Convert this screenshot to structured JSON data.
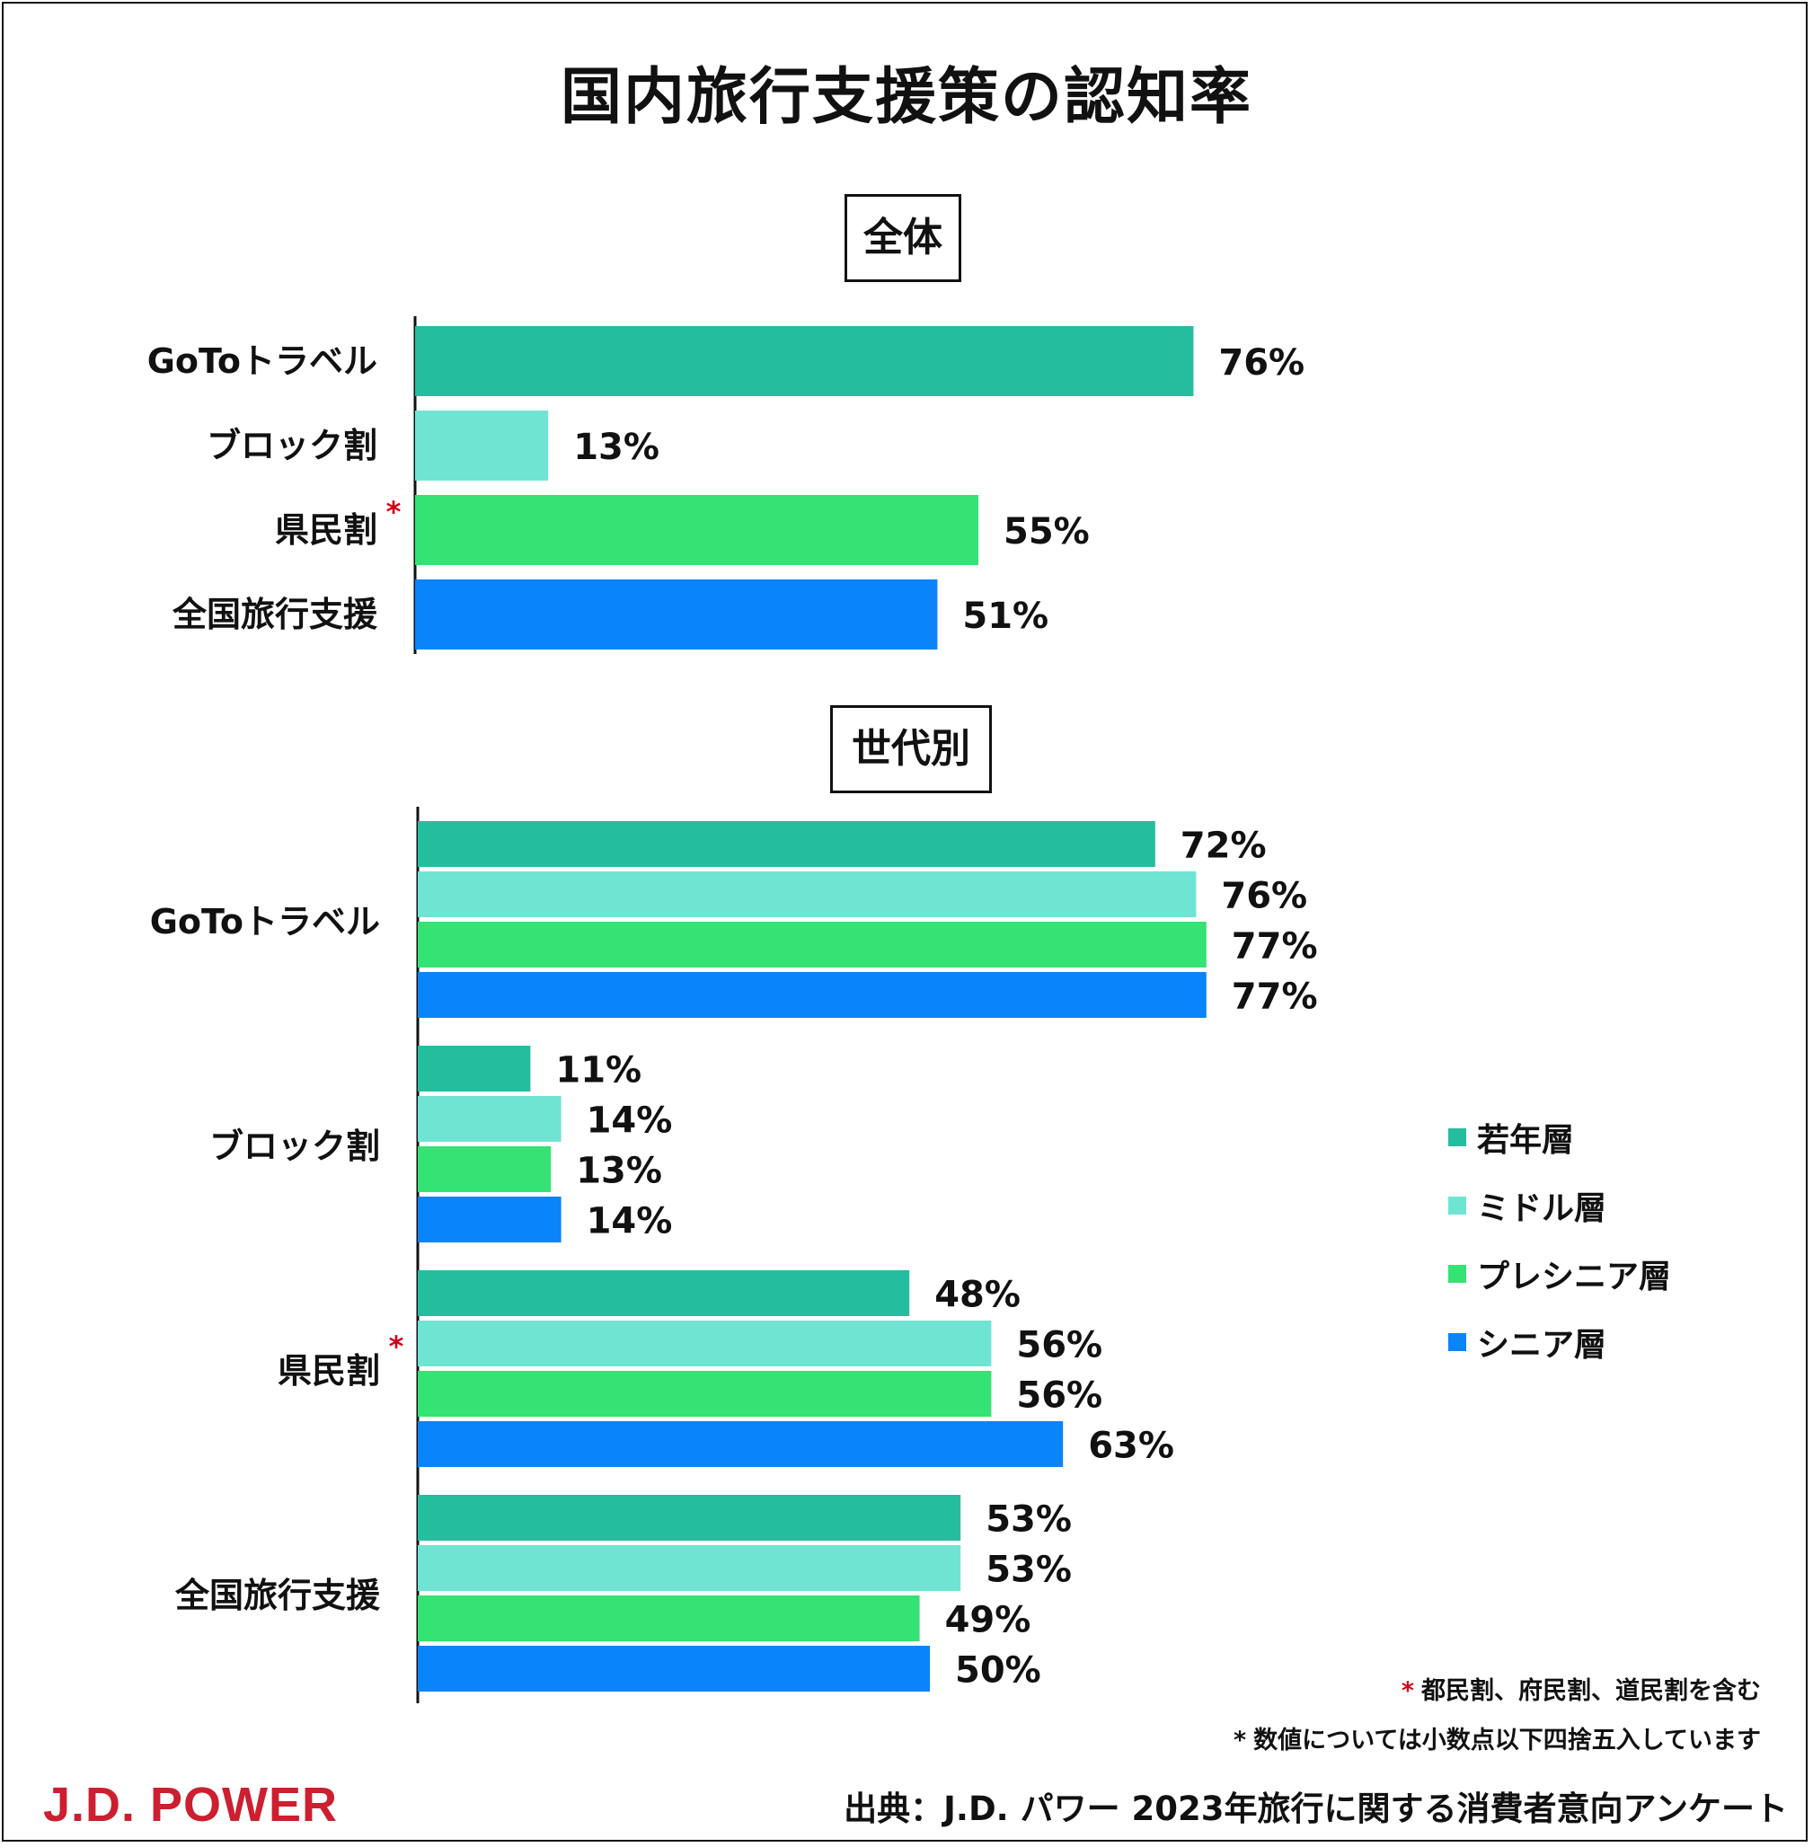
{
  "title": "国内旅行支援策の認知率",
  "sections": {
    "overall": "全体",
    "by_generation": "世代別"
  },
  "colors": {
    "young": "#24be9f",
    "middle": "#70e4d3",
    "pre_senior": "#34e374",
    "senior": "#0a84fb",
    "asterisk": "#d0021b",
    "brand": "#cc1f2f"
  },
  "chart_data": [
    {
      "type": "bar",
      "orientation": "horizontal",
      "title": "全体",
      "categories": [
        "GoToトラベル",
        "ブロック割",
        "県民割",
        "全国旅行支援"
      ],
      "values": [
        76,
        13,
        55,
        51
      ],
      "bar_colors": [
        "young",
        "middle",
        "pre_senior",
        "senior"
      ],
      "value_suffix": "%",
      "xlim": [
        0,
        100
      ],
      "grid": false,
      "annotated_categories": [
        "県民割"
      ]
    },
    {
      "type": "bar",
      "orientation": "horizontal",
      "title": "世代別",
      "categories": [
        "GoToトラベル",
        "ブロック割",
        "県民割",
        "全国旅行支援"
      ],
      "series": [
        {
          "name": "若年層",
          "color": "young",
          "values": [
            72,
            11,
            48,
            53
          ]
        },
        {
          "name": "ミドル層",
          "color": "middle",
          "values": [
            76,
            14,
            56,
            53
          ]
        },
        {
          "name": "プレシニア層",
          "color": "pre_senior",
          "values": [
            77,
            13,
            56,
            49
          ]
        },
        {
          "name": "シニア層",
          "color": "senior",
          "values": [
            77,
            14,
            63,
            50
          ]
        }
      ],
      "value_suffix": "%",
      "xlim": [
        0,
        100
      ],
      "grid": false,
      "legend_position": "right",
      "annotated_categories": [
        "県民割"
      ]
    }
  ],
  "legend": [
    {
      "label": "若年層",
      "color": "young"
    },
    {
      "label": "ミドル層",
      "color": "middle"
    },
    {
      "label": "プレシニア層",
      "color": "pre_senior"
    },
    {
      "label": "シニア層",
      "color": "senior"
    }
  ],
  "notes": {
    "asterisk_symbol": "*",
    "red_note": "都民割、府民割、道民割を含む",
    "black_note": "数値については小数点以下四捨五入しています"
  },
  "source": "出典：J.D. パワー 2023年旅行に関する消費者意向アンケート",
  "logo_text": "J.D. POWER"
}
